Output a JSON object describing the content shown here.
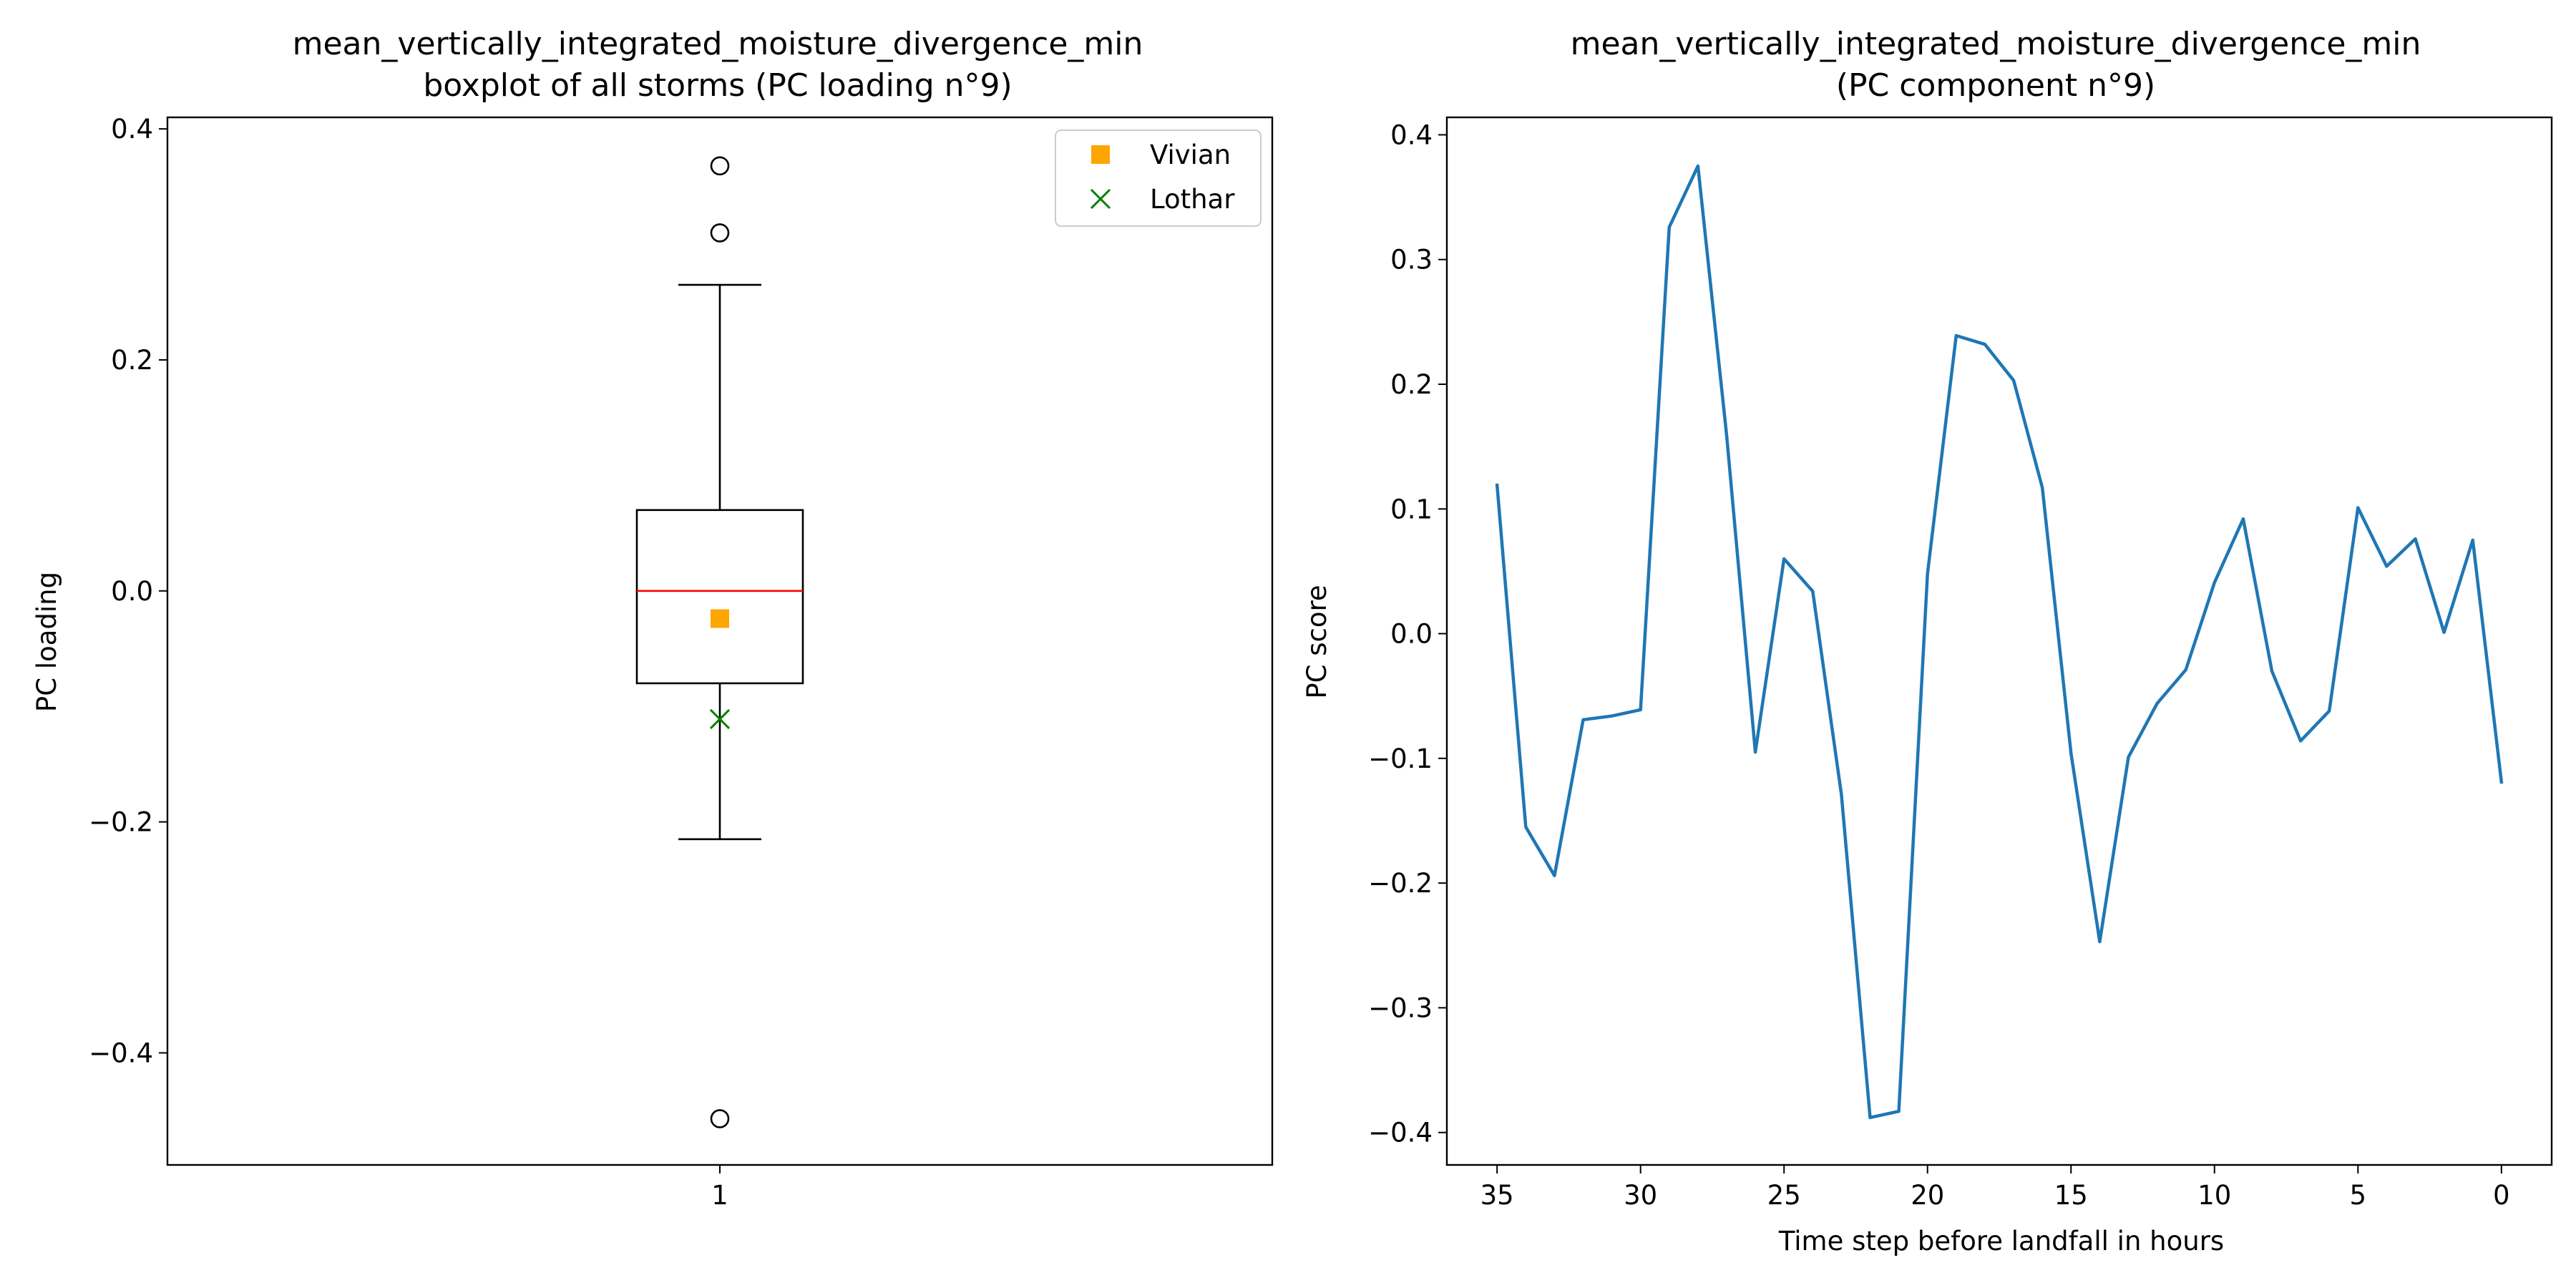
{
  "chart_data": [
    {
      "type": "boxplot",
      "title_line1": "mean_vertically_integrated_moisture_divergence_min",
      "title_line2": "boxplot of all storms (PC loading n°9)",
      "xlabel": "",
      "ylabel": "PC loading",
      "ylim": [
        -0.497,
        0.41
      ],
      "yticks": [
        0.4,
        0.2,
        0.0,
        -0.2,
        -0.4
      ],
      "ytick_labels": [
        "0.4",
        "0.2",
        "0.0",
        "−0.2",
        "−0.4"
      ],
      "xtick_labels": [
        "1"
      ],
      "grid": false,
      "legend_position": "upper right",
      "box": {
        "category": "1",
        "median": 0.0,
        "q1": -0.08,
        "q3": 0.07,
        "whisker_low": -0.215,
        "whisker_high": 0.265,
        "outliers": [
          0.368,
          0.31,
          -0.457
        ]
      },
      "colors": {
        "box": "#000000",
        "median": "#ff0000"
      },
      "markers": [
        {
          "name": "Vivian",
          "value": -0.024,
          "marker": "square",
          "color": "#ffa500"
        },
        {
          "name": "Lothar",
          "value": -0.111,
          "marker": "x",
          "color": "#008000"
        }
      ]
    },
    {
      "type": "line",
      "title_line1": "mean_vertically_integrated_moisture_divergence_min",
      "title_line2": "(PC component n°9)",
      "xlabel": "Time step before landfall in hours",
      "ylabel": "PC score",
      "xlim": [
        36.75,
        -1.75
      ],
      "ylim": [
        -0.426,
        0.414
      ],
      "xticks": [
        35,
        30,
        25,
        20,
        15,
        10,
        5,
        0
      ],
      "xtick_labels": [
        "35",
        "30",
        "25",
        "20",
        "15",
        "10",
        "5",
        "0"
      ],
      "yticks": [
        0.4,
        0.3,
        0.2,
        0.1,
        0.0,
        -0.1,
        -0.2,
        -0.3,
        -0.4
      ],
      "ytick_labels": [
        "0.4",
        "0.3",
        "0.2",
        "0.1",
        "0.0",
        "−0.1",
        "−0.2",
        "−0.3",
        "−0.4"
      ],
      "grid": false,
      "colors": {
        "line": "#1f77b4"
      },
      "x": [
        35,
        34,
        33,
        32,
        31,
        30,
        29,
        28,
        27,
        26,
        25,
        24,
        23,
        22,
        21,
        20,
        19,
        18,
        17,
        16,
        15,
        14,
        13,
        12,
        11,
        10,
        9,
        8,
        7,
        6,
        5,
        4,
        3,
        2,
        1,
        0
      ],
      "y": [
        0.119,
        -0.155,
        -0.194,
        -0.069,
        -0.066,
        -0.061,
        0.326,
        0.375,
        0.159,
        -0.095,
        0.06,
        0.034,
        -0.129,
        -0.388,
        -0.383,
        0.048,
        0.239,
        0.232,
        0.203,
        0.117,
        -0.096,
        -0.247,
        -0.099,
        -0.056,
        -0.029,
        0.041,
        0.092,
        -0.03,
        -0.086,
        -0.062,
        0.101,
        0.054,
        0.076,
        0.001,
        0.075,
        -0.119
      ]
    }
  ]
}
